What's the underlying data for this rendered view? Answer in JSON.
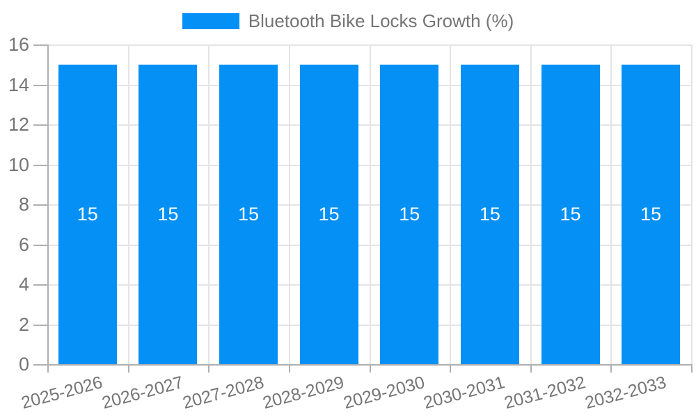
{
  "legend": {
    "label": "Bluetooth Bike Locks Growth (%)"
  },
  "colors": {
    "bar": "#0590f6",
    "bar_label": "#ffffff",
    "axis_text": "#757575",
    "grid_line": "#e4e4e4",
    "axis_line": "#b0b0b0",
    "tick": "#b0b0b0",
    "background": "#ffffff"
  },
  "chart_data": {
    "type": "bar",
    "title": "Bluetooth Bike Locks Growth (%)",
    "categories": [
      "2025-2026",
      "2026-2027",
      "2027-2028",
      "2028-2029",
      "2029-2030",
      "2030-2031",
      "2031-2032",
      "2032-2033"
    ],
    "values": [
      15,
      15,
      15,
      15,
      15,
      15,
      15,
      15
    ],
    "bar_value_labels": [
      "15",
      "15",
      "15",
      "15",
      "15",
      "15",
      "15",
      "15"
    ],
    "xlabel": "",
    "ylabel": "",
    "ylim": [
      0,
      16
    ],
    "yticks": [
      0,
      2,
      4,
      6,
      8,
      10,
      12,
      14,
      16
    ],
    "grid": "on",
    "legend_position": "top-center",
    "x_tick_rotation_deg": -15
  }
}
